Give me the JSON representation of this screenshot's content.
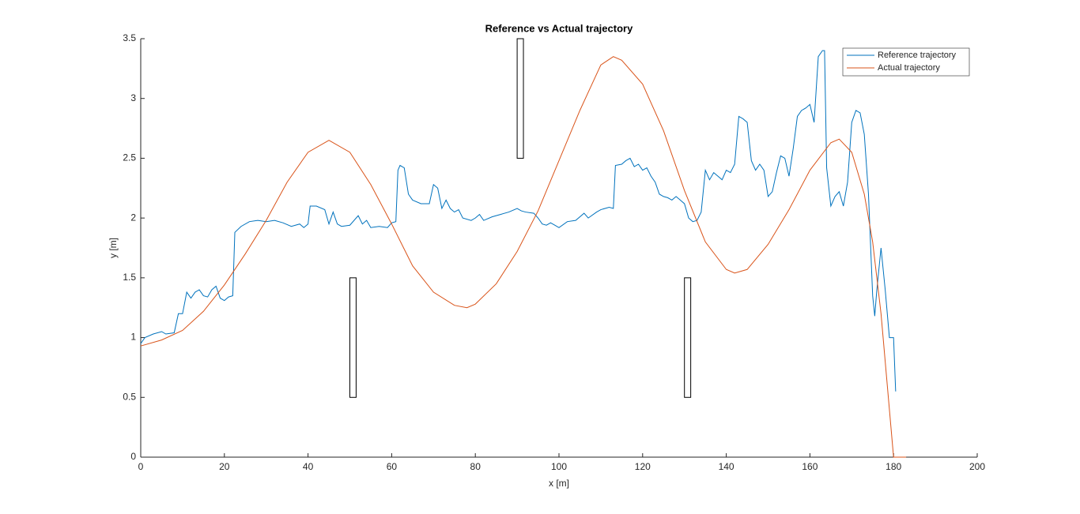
{
  "chart_data": {
    "type": "line",
    "title": "Reference vs Actual trajectory",
    "xlabel": "x [m]",
    "ylabel": "y [m]",
    "xlim": [
      0,
      200
    ],
    "xticks": [
      0,
      20,
      40,
      60,
      80,
      100,
      120,
      140,
      160,
      180,
      200
    ],
    "ylim": [
      0,
      3.5
    ],
    "yticks": [
      0,
      0.5,
      1,
      1.5,
      2,
      2.5,
      3,
      3.5
    ],
    "legend": "northeast",
    "series": [
      {
        "name": "Reference trajectory",
        "color": "#0072bd",
        "x": [
          0,
          1,
          3,
          5,
          6,
          8,
          9,
          10,
          11,
          12,
          13,
          14,
          15,
          16,
          17,
          18,
          19,
          20,
          21,
          22,
          22.5,
          24,
          26,
          28,
          30,
          32,
          34,
          36,
          38,
          39,
          40,
          40.5,
          42,
          44,
          45,
          46,
          47,
          48,
          50,
          52,
          53,
          54,
          55,
          57,
          59,
          60,
          61,
          61.5,
          62,
          63,
          64,
          65,
          67,
          69,
          70,
          71,
          72,
          73,
          74,
          75,
          76,
          77,
          79,
          80,
          81,
          82,
          84,
          86,
          88,
          90,
          91,
          92,
          94,
          95,
          96,
          97,
          98,
          99,
          100,
          102,
          104,
          106,
          107,
          109,
          110,
          112,
          113,
          113.5,
          115,
          116,
          117,
          118,
          119,
          120,
          121,
          122,
          123,
          124,
          125,
          126,
          127,
          128,
          129,
          130,
          131,
          132,
          133,
          134,
          135,
          136,
          137,
          138,
          139,
          140,
          141,
          142,
          143,
          144,
          145,
          146,
          147,
          148,
          149,
          150,
          151,
          152,
          153,
          154,
          155,
          156,
          157,
          158,
          159,
          160,
          161,
          162,
          163,
          163.5,
          164,
          165,
          166,
          167,
          168,
          169,
          170,
          171,
          172,
          173,
          174,
          175,
          175.5,
          176,
          177,
          178,
          179,
          180,
          180.5
        ],
        "values": [
          0.95,
          1.0,
          1.03,
          1.05,
          1.03,
          1.04,
          1.2,
          1.2,
          1.38,
          1.33,
          1.38,
          1.4,
          1.35,
          1.34,
          1.4,
          1.43,
          1.33,
          1.31,
          1.34,
          1.35,
          1.88,
          1.93,
          1.97,
          1.98,
          1.97,
          1.98,
          1.96,
          1.93,
          1.95,
          1.92,
          1.95,
          2.1,
          2.1,
          2.07,
          1.95,
          2.05,
          1.95,
          1.93,
          1.94,
          2.02,
          1.95,
          1.98,
          1.92,
          1.93,
          1.92,
          1.96,
          1.97,
          2.4,
          2.44,
          2.42,
          2.2,
          2.15,
          2.12,
          2.12,
          2.28,
          2.25,
          2.08,
          2.15,
          2.08,
          2.05,
          2.07,
          2.0,
          1.98,
          2.0,
          2.03,
          1.98,
          2.01,
          2.03,
          2.05,
          2.08,
          2.06,
          2.05,
          2.04,
          2.0,
          1.95,
          1.94,
          1.96,
          1.94,
          1.92,
          1.97,
          1.98,
          2.04,
          2.0,
          2.05,
          2.07,
          2.09,
          2.08,
          2.44,
          2.45,
          2.48,
          2.5,
          2.43,
          2.45,
          2.4,
          2.42,
          2.35,
          2.3,
          2.2,
          2.18,
          2.17,
          2.15,
          2.18,
          2.15,
          2.12,
          2.0,
          1.97,
          1.98,
          2.05,
          2.4,
          2.32,
          2.38,
          2.35,
          2.32,
          2.4,
          2.38,
          2.45,
          2.85,
          2.83,
          2.8,
          2.48,
          2.4,
          2.45,
          2.4,
          2.18,
          2.22,
          2.38,
          2.52,
          2.5,
          2.35,
          2.58,
          2.85,
          2.9,
          2.92,
          2.95,
          2.8,
          3.35,
          3.4,
          3.4,
          2.42,
          2.1,
          2.18,
          2.22,
          2.1,
          2.3,
          2.8,
          2.9,
          2.88,
          2.7,
          2.2,
          1.35,
          1.18,
          1.4,
          1.75,
          1.4,
          1.0,
          1.0,
          0.55
        ]
      },
      {
        "name": "Actual trajectory",
        "color": "#d95319",
        "x": [
          0,
          5,
          10,
          15,
          20,
          25,
          30,
          35,
          40,
          45,
          50,
          55,
          60,
          65,
          70,
          75,
          78,
          80,
          85,
          90,
          95,
          100,
          105,
          110,
          113,
          115,
          120,
          125,
          130,
          135,
          140,
          142,
          145,
          150,
          155,
          160,
          165,
          167,
          170,
          173,
          175,
          177,
          179,
          180,
          183
        ],
        "values": [
          0.93,
          0.98,
          1.06,
          1.22,
          1.44,
          1.7,
          1.98,
          2.3,
          2.55,
          2.65,
          2.55,
          2.28,
          1.95,
          1.6,
          1.38,
          1.27,
          1.25,
          1.28,
          1.45,
          1.72,
          2.06,
          2.48,
          2.9,
          3.28,
          3.35,
          3.32,
          3.12,
          2.73,
          2.23,
          1.8,
          1.57,
          1.54,
          1.57,
          1.78,
          2.07,
          2.4,
          2.63,
          2.66,
          2.55,
          2.2,
          1.8,
          1.2,
          0.4,
          0,
          0
        ]
      }
    ],
    "obstacles": [
      {
        "x": [
          50,
          51.5
        ],
        "y": [
          0.5,
          1.5
        ]
      },
      {
        "x": [
          90,
          91.5
        ],
        "y": [
          2.5,
          3.5
        ]
      },
      {
        "x": [
          130,
          131.5
        ],
        "y": [
          0.5,
          1.5
        ]
      }
    ]
  }
}
